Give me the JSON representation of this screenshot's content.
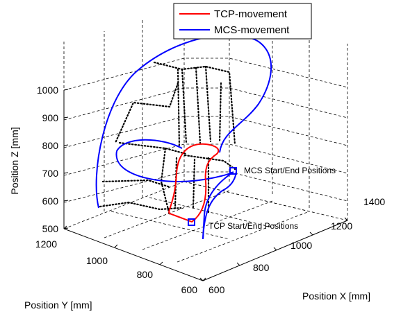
{
  "chart_data": {
    "type": "line",
    "title": "",
    "projection": "3d",
    "grid": true,
    "legend_position": "top",
    "xlabel": "Position X [mm]",
    "ylabel": "Position Y [mm]",
    "zlabel": "Position Z [mm]",
    "xlim": [
      600,
      1400
    ],
    "ylim": [
      600,
      1200
    ],
    "zlim": [
      500,
      1000
    ],
    "x_ticks": [
      "600",
      "800",
      "1000",
      "1200",
      "1400"
    ],
    "y_ticks": [
      "600",
      "800",
      "1000",
      "1200"
    ],
    "z_ticks": [
      "500",
      "600",
      "700",
      "800",
      "900",
      "1000"
    ],
    "series": [
      {
        "name": "TCP-movement",
        "color": "#ff0000"
      },
      {
        "name": "MCS-movement",
        "color": "#0000ff"
      }
    ],
    "annotations": [
      {
        "text": "MCS Start/End Positions"
      },
      {
        "text": "TCP Start/End Positions"
      }
    ]
  }
}
